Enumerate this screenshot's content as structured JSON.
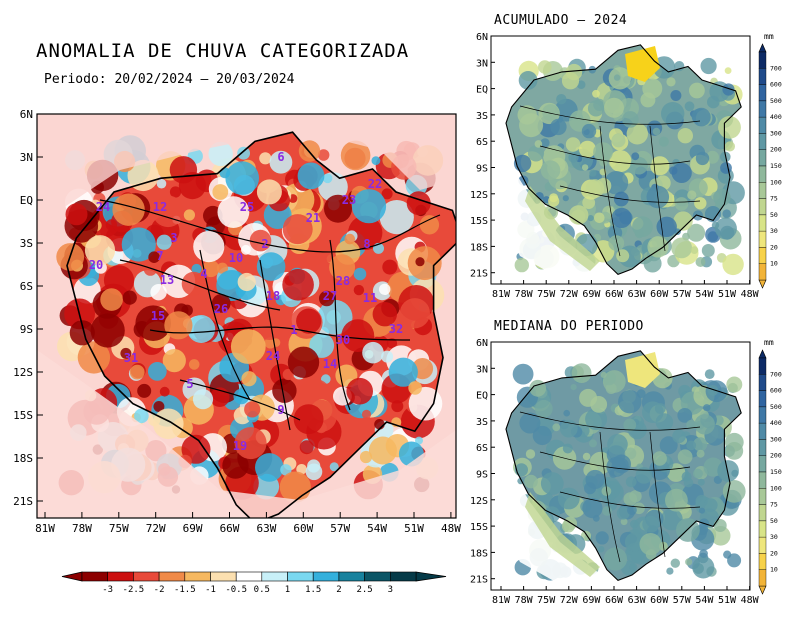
{
  "main": {
    "title": "ANOMALIA DE CHUVA CATEGORIZADA",
    "period": "Periodo: 20/02/2024 – 20/03/2024",
    "lat_ticks": [
      "6N",
      "3N",
      "EQ",
      "3S",
      "6S",
      "9S",
      "12S",
      "15S",
      "18S",
      "21S"
    ],
    "lon_ticks": [
      "81W",
      "78W",
      "75W",
      "72W",
      "69W",
      "66W",
      "63W",
      "60W",
      "57W",
      "54W",
      "51W",
      "48W"
    ],
    "basin_labels": [
      "6",
      "12",
      "25",
      "21",
      "23",
      "22",
      "24",
      "2",
      "3",
      "10",
      "20",
      "8",
      "4",
      "13",
      "28",
      "18",
      "11",
      "15",
      "26",
      "1",
      "30",
      "32",
      "31",
      "24",
      "14",
      "5",
      "9",
      "19",
      "7",
      "27"
    ],
    "colorbar": {
      "labels": [
        "-3",
        "-2.5",
        "-2",
        "-1.5",
        "-1",
        "-0.5",
        "0.5",
        "1",
        "1.5",
        "2",
        "2.5",
        "3"
      ],
      "colors": [
        "#8c0000",
        "#cc1010",
        "#e84a3a",
        "#f08a48",
        "#f6b860",
        "#fce0b0",
        "#ffffff",
        "#c8f0f8",
        "#7ad8f0",
        "#34b0dc",
        "#18829e",
        "#0b5566",
        "#053a48"
      ]
    }
  },
  "accum": {
    "title": "ACUMULADO – 2024",
    "unit": "mm"
  },
  "median": {
    "title": "MEDIANA DO PERIODO",
    "unit": "mm"
  },
  "small_map": {
    "lat_ticks": [
      "6N",
      "3N",
      "EQ",
      "3S",
      "6S",
      "9S",
      "12S",
      "15S",
      "18S",
      "21S"
    ],
    "lon_ticks": [
      "81W",
      "78W",
      "75W",
      "72W",
      "69W",
      "66W",
      "63W",
      "60W",
      "57W",
      "54W",
      "51W",
      "48W"
    ]
  },
  "precip_colorbar": {
    "labels": [
      "700",
      "600",
      "500",
      "400",
      "300",
      "200",
      "150",
      "100",
      "75",
      "50",
      "30",
      "20",
      "10"
    ],
    "colors": [
      "#0c2a66",
      "#1f4a8a",
      "#2f64a0",
      "#3f78a6",
      "#4f8aa6",
      "#5f98a4",
      "#76a8a0",
      "#8fb89c",
      "#a8c898",
      "#c0d690",
      "#d8e488",
      "#eee67c",
      "#f7d24a",
      "#f2b438"
    ]
  }
}
